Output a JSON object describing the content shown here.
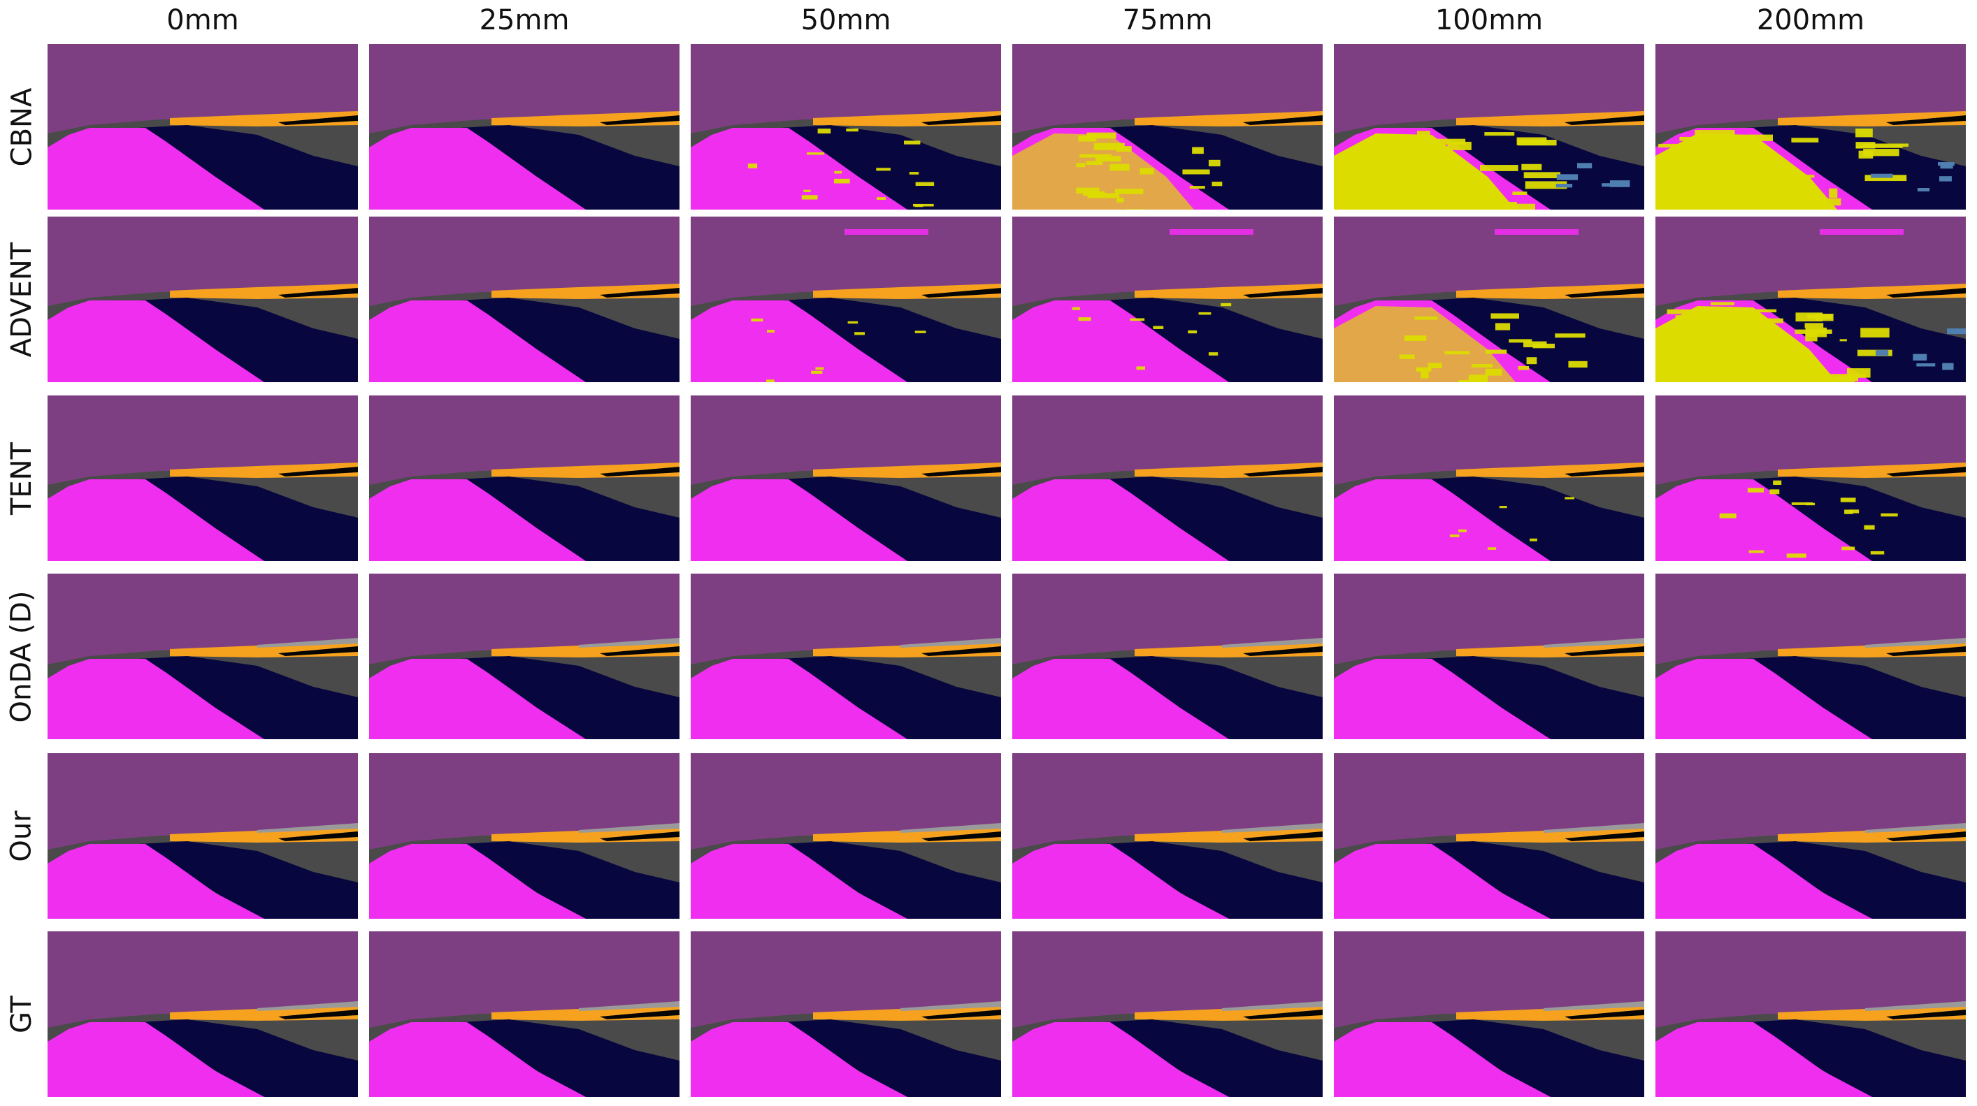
{
  "columns": [
    "0mm",
    "25mm",
    "50mm",
    "75mm",
    "100mm",
    "200mm"
  ],
  "rows": [
    "CBNA",
    "ADVENT",
    "TENT",
    "OnDA (D)",
    "Our",
    "GT"
  ],
  "colors": {
    "sky": "#7e3f82",
    "road": "#f02ef0",
    "sidewalk": "#4a4a4a",
    "dark_region": "#07063e",
    "orange_band": "#f6a21f",
    "black_band": "#050505",
    "grey_band": "#9a9a9a",
    "yellow_noise": "#dcdc00",
    "blue_noise": "#4f7fb0"
  }
}
